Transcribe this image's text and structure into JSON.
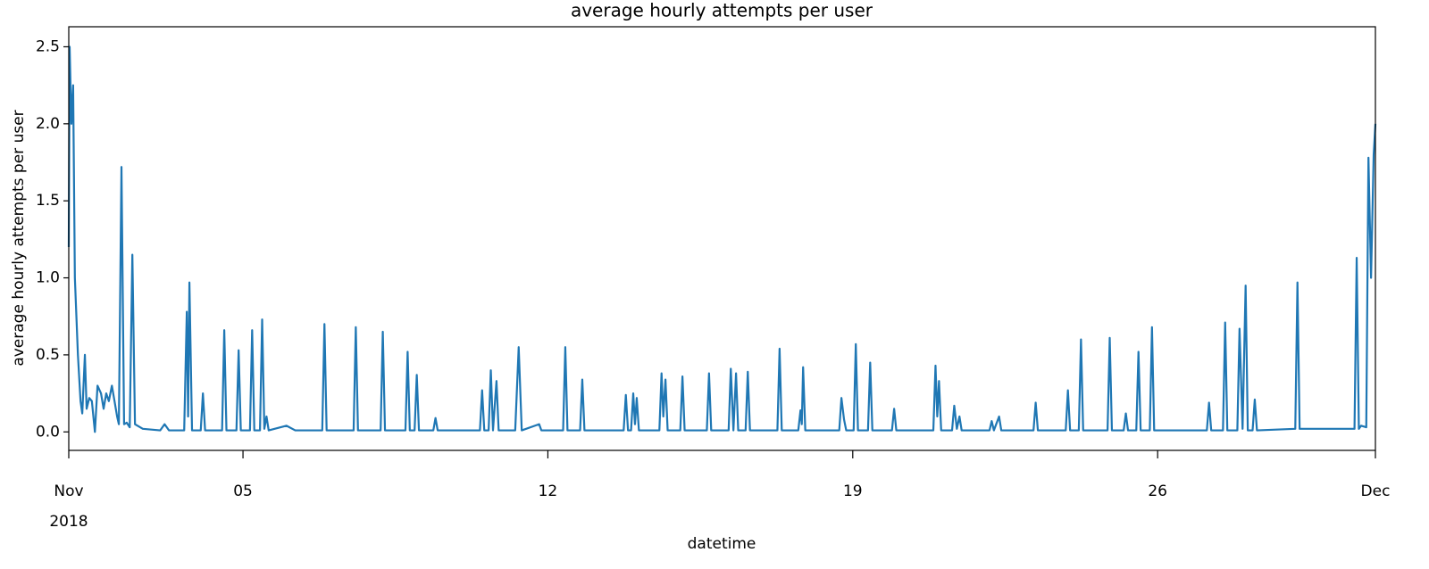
{
  "chart_data": {
    "type": "line",
    "title": "average hourly attempts per user",
    "xlabel": "datetime",
    "ylabel": "average hourly attempts per user",
    "color": "#1f77b4",
    "xlim": [
      0,
      30
    ],
    "ylim": [
      -0.12,
      2.63
    ],
    "xticks": [
      {
        "value": 0,
        "label": "Nov\n2018"
      },
      {
        "value": 4,
        "label": "05"
      },
      {
        "value": 11,
        "label": "12"
      },
      {
        "value": 18,
        "label": "19"
      },
      {
        "value": 25,
        "label": "26"
      },
      {
        "value": 30,
        "label": "Dec"
      }
    ],
    "yticks": [
      {
        "value": 0,
        "label": "0.0"
      },
      0.5,
      {
        "value": 1,
        "label": "1.0"
      },
      1.5,
      {
        "value": 2,
        "label": "2.0"
      },
      2.5
    ],
    "x": [
      0,
      0.02,
      0.06,
      0.1,
      0.14,
      0.21,
      0.27,
      0.31,
      0.37,
      0.41,
      0.47,
      0.53,
      0.6,
      0.66,
      0.74,
      0.8,
      0.86,
      0.92,
      0.99,
      1.05,
      1.11,
      1.15,
      1.21,
      1.27,
      1.33,
      1.4,
      1.46,
      1.52,
      1.7,
      2.1,
      2.2,
      2.3,
      2.65,
      2.71,
      2.74,
      2.77,
      2.83,
      3.03,
      3.08,
      3.13,
      3.52,
      3.57,
      3.62,
      3.85,
      3.9,
      3.95,
      4.16,
      4.21,
      4.26,
      4.39,
      4.44,
      4.49,
      4.54,
      4.59,
      5.0,
      5.2,
      5.82,
      5.87,
      5.92,
      6.54,
      6.59,
      6.64,
      7.16,
      7.21,
      7.26,
      7.73,
      7.78,
      7.83,
      7.94,
      7.99,
      8.04,
      8.37,
      8.42,
      8.47,
      9.44,
      9.49,
      9.54,
      9.64,
      9.69,
      9.74,
      9.82,
      9.87,
      10.25,
      10.33,
      10.4,
      10.8,
      10.85,
      11.35,
      11.4,
      11.45,
      11.74,
      11.79,
      11.84,
      12.74,
      12.79,
      12.84,
      12.91,
      12.96,
      13.0,
      13.04,
      13.09,
      13.56,
      13.61,
      13.65,
      13.7,
      13.75,
      14.04,
      14.09,
      14.14,
      14.65,
      14.7,
      14.75,
      15.15,
      15.2,
      15.26,
      15.32,
      15.37,
      15.54,
      15.59,
      15.64,
      16.27,
      16.32,
      16.37,
      16.75,
      16.8,
      16.83,
      16.86,
      16.91,
      17.69,
      17.74,
      17.8,
      17.85,
      18.02,
      18.07,
      18.12,
      18.35,
      18.4,
      18.45,
      18.9,
      18.95,
      19.0,
      19.85,
      19.9,
      19.94,
      19.98,
      20.03,
      20.28,
      20.33,
      20.39,
      20.45,
      20.5,
      21.14,
      21.19,
      21.24,
      21.36,
      21.41,
      22.15,
      22.2,
      22.25,
      22.89,
      22.94,
      22.99,
      23.19,
      23.24,
      23.29,
      23.85,
      23.9,
      23.95,
      24.22,
      24.27,
      24.32,
      24.51,
      24.56,
      24.61,
      24.82,
      24.87,
      24.92,
      26.13,
      26.18,
      26.23,
      26.5,
      26.55,
      26.6,
      26.83,
      26.88,
      26.95,
      27.02,
      27.07,
      27.18,
      27.23,
      27.28,
      28.16,
      28.21,
      28.26,
      29.52,
      29.57,
      29.62,
      29.67,
      29.79,
      29.84,
      29.9,
      29.96,
      30.0
    ],
    "values": [
      1.2,
      2.5,
      2.0,
      2.25,
      1.0,
      0.5,
      0.2,
      0.12,
      0.5,
      0.15,
      0.22,
      0.2,
      0.0,
      0.3,
      0.25,
      0.15,
      0.25,
      0.2,
      0.3,
      0.2,
      0.1,
      0.05,
      1.72,
      0.05,
      0.06,
      0.03,
      1.15,
      0.05,
      0.02,
      0.01,
      0.05,
      0.01,
      0.01,
      0.78,
      0.1,
      0.97,
      0.01,
      0.01,
      0.25,
      0.01,
      0.01,
      0.66,
      0.01,
      0.01,
      0.53,
      0.01,
      0.01,
      0.66,
      0.01,
      0.01,
      0.73,
      0.02,
      0.1,
      0.01,
      0.04,
      0.01,
      0.01,
      0.7,
      0.01,
      0.01,
      0.68,
      0.01,
      0.01,
      0.65,
      0.01,
      0.01,
      0.52,
      0.01,
      0.01,
      0.37,
      0.01,
      0.01,
      0.09,
      0.01,
      0.01,
      0.27,
      0.01,
      0.01,
      0.4,
      0.01,
      0.33,
      0.01,
      0.01,
      0.55,
      0.01,
      0.05,
      0.01,
      0.01,
      0.55,
      0.01,
      0.01,
      0.34,
      0.01,
      0.01,
      0.24,
      0.01,
      0.01,
      0.25,
      0.05,
      0.22,
      0.01,
      0.01,
      0.38,
      0.1,
      0.34,
      0.01,
      0.01,
      0.36,
      0.01,
      0.01,
      0.38,
      0.01,
      0.01,
      0.41,
      0.01,
      0.38,
      0.01,
      0.01,
      0.39,
      0.01,
      0.01,
      0.54,
      0.01,
      0.01,
      0.14,
      0.05,
      0.42,
      0.01,
      0.01,
      0.22,
      0.08,
      0.01,
      0.01,
      0.57,
      0.01,
      0.01,
      0.45,
      0.01,
      0.01,
      0.15,
      0.01,
      0.01,
      0.43,
      0.1,
      0.33,
      0.01,
      0.01,
      0.17,
      0.02,
      0.1,
      0.01,
      0.01,
      0.07,
      0.01,
      0.1,
      0.01,
      0.01,
      0.19,
      0.01,
      0.01,
      0.27,
      0.01,
      0.01,
      0.6,
      0.01,
      0.01,
      0.61,
      0.01,
      0.01,
      0.12,
      0.01,
      0.01,
      0.52,
      0.01,
      0.01,
      0.68,
      0.01,
      0.01,
      0.19,
      0.01,
      0.01,
      0.71,
      0.01,
      0.01,
      0.67,
      0.02,
      0.95,
      0.01,
      0.01,
      0.21,
      0.01,
      0.02,
      0.97,
      0.02,
      0.02,
      1.13,
      0.02,
      0.04,
      0.03,
      1.78,
      1.0,
      1.8,
      2.0
    ]
  }
}
